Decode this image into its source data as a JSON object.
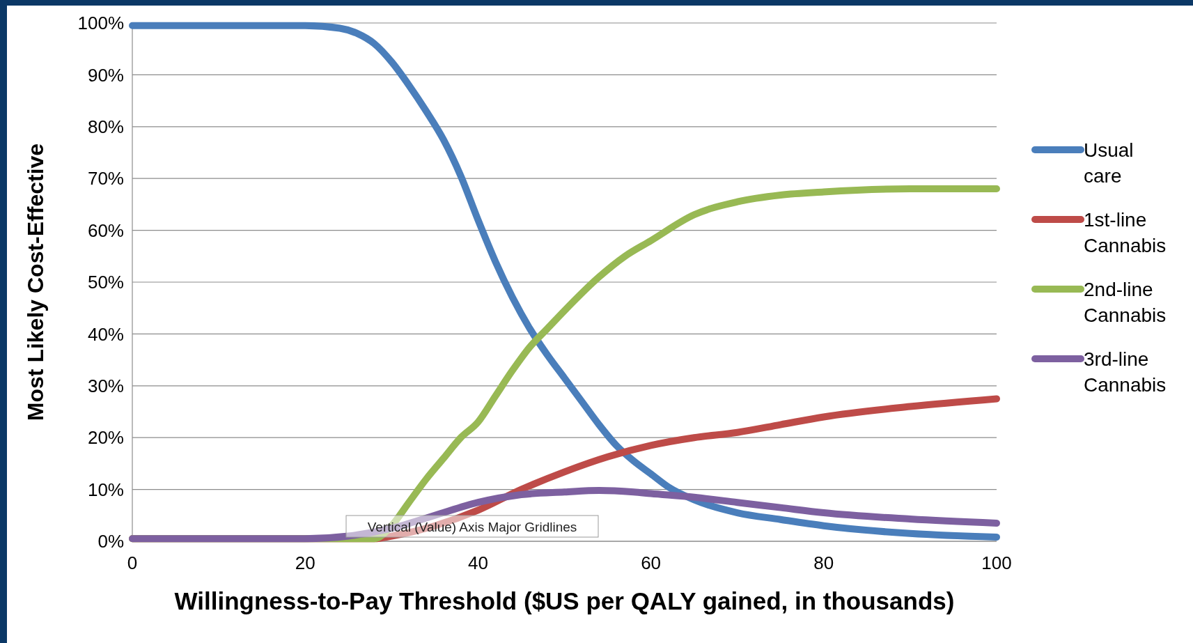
{
  "chart_data": {
    "type": "line",
    "xlabel": "Willingness-to-Pay Threshold ($US per QALY gained, in thousands)",
    "ylabel": "Most Likely Cost-Effective",
    "xlim": [
      0,
      100
    ],
    "xticks": [
      0,
      20,
      40,
      60,
      80,
      100
    ],
    "ylim": [
      0,
      100
    ],
    "yticks": [
      {
        "value": 0,
        "label": "0%"
      },
      {
        "value": 10,
        "label": "10%"
      },
      {
        "value": 20,
        "label": "20%"
      },
      {
        "value": 30,
        "label": "30%"
      },
      {
        "value": 40,
        "label": "40%"
      },
      {
        "value": 50,
        "label": "50%"
      },
      {
        "value": 60,
        "label": "60%"
      },
      {
        "value": 70,
        "label": "70%"
      },
      {
        "value": 80,
        "label": "80%"
      },
      {
        "value": 90,
        "label": "90%"
      },
      {
        "value": 100,
        "label": "100%"
      }
    ],
    "grid": "y",
    "legend": "right",
    "marker": "none",
    "line_style": "solid",
    "annotations": [
      "Vertical (Value) Axis Major Gridlines"
    ],
    "series": [
      {
        "name": "Usual care",
        "color": "#4a7ebb",
        "x": [
          0,
          10,
          20,
          24,
          26,
          28,
          30,
          32,
          34,
          36,
          38,
          40,
          42,
          44,
          46,
          48,
          50,
          52,
          54,
          56,
          58,
          60,
          62,
          65,
          70,
          75,
          80,
          90,
          100
        ],
        "values": [
          99.5,
          99.5,
          99.5,
          99,
          98,
          96,
          92.5,
          88,
          83,
          77.5,
          70.5,
          62,
          54,
          47,
          41,
          36,
          31.5,
          27,
          22.5,
          18.5,
          15.5,
          13,
          10.5,
          8,
          5.5,
          4.2,
          3,
          1.5,
          0.8
        ]
      },
      {
        "name": "1st-line Cannabis",
        "color": "#be4b48",
        "x": [
          0,
          10,
          20,
          28,
          30,
          35,
          40,
          45,
          50,
          55,
          60,
          65,
          70,
          75,
          80,
          90,
          100
        ],
        "values": [
          0.5,
          0.5,
          0.5,
          0.5,
          1,
          3,
          6,
          10,
          13.4,
          16.3,
          18.5,
          20,
          21,
          22.5,
          24,
          26,
          27.5
        ]
      },
      {
        "name": "2nd-line Cannabis",
        "color": "#98b954",
        "x": [
          0,
          10,
          20,
          28,
          30,
          32,
          34,
          36,
          38,
          40,
          42,
          44,
          46,
          48,
          50,
          54,
          57,
          60,
          65,
          70,
          75,
          80,
          90,
          100
        ],
        "values": [
          0.5,
          0.5,
          0.5,
          0.5,
          3,
          7.5,
          12,
          16,
          20,
          23,
          28,
          33,
          37.5,
          41,
          44.5,
          51,
          55,
          58,
          63,
          65.5,
          66.8,
          67.4,
          68,
          68
        ]
      },
      {
        "name": "3rd-line Cannabis",
        "color": "#7d60a0",
        "x": [
          0,
          10,
          20,
          25,
          30,
          35,
          40,
          45,
          50,
          54,
          58,
          60,
          65,
          70,
          75,
          80,
          90,
          100
        ],
        "values": [
          0.5,
          0.5,
          0.5,
          1,
          2.5,
          5,
          7.5,
          9,
          9.5,
          9.8,
          9.5,
          9.2,
          8.5,
          7.5,
          6.5,
          5.5,
          4.3,
          3.5
        ]
      }
    ]
  }
}
